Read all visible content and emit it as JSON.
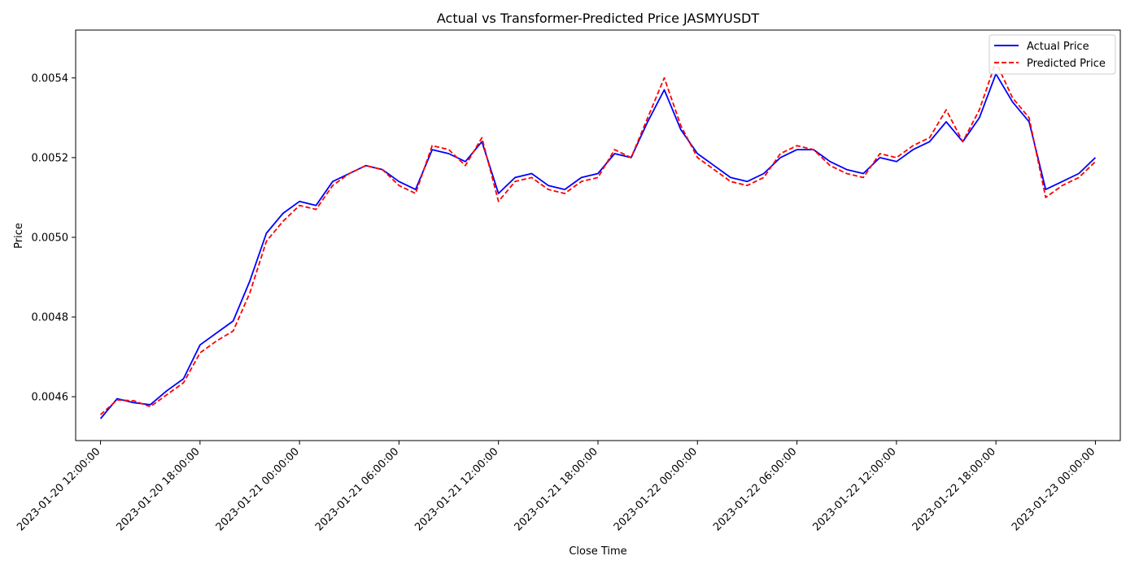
{
  "chart_data": {
    "type": "line",
    "title": "Actual vs Transformer-Predicted Price JASMYUSDT",
    "xlabel": "Close Time",
    "ylabel": "Price",
    "grid": false,
    "legend_position": "top-right",
    "x_range": [
      "2023-01-20 10:30:00",
      "2023-01-23 01:30:00"
    ],
    "ylim": [
      0.00449,
      0.00552
    ],
    "x_ticks": [
      "2023-01-20 12:00:00",
      "2023-01-20 18:00:00",
      "2023-01-21 00:00:00",
      "2023-01-21 06:00:00",
      "2023-01-21 12:00:00",
      "2023-01-21 18:00:00",
      "2023-01-22 00:00:00",
      "2023-01-22 06:00:00",
      "2023-01-22 12:00:00",
      "2023-01-22 18:00:00",
      "2023-01-23 00:00:00"
    ],
    "y_ticks": [
      "0.0046",
      "0.0048",
      "0.0050",
      "0.0052",
      "0.0054"
    ],
    "x": [
      "2023-01-20 12:00:00",
      "2023-01-20 13:00:00",
      "2023-01-20 14:00:00",
      "2023-01-20 15:00:00",
      "2023-01-20 16:00:00",
      "2023-01-20 17:00:00",
      "2023-01-20 18:00:00",
      "2023-01-20 19:00:00",
      "2023-01-20 20:00:00",
      "2023-01-20 21:00:00",
      "2023-01-20 22:00:00",
      "2023-01-20 23:00:00",
      "2023-01-21 00:00:00",
      "2023-01-21 01:00:00",
      "2023-01-21 02:00:00",
      "2023-01-21 03:00:00",
      "2023-01-21 04:00:00",
      "2023-01-21 05:00:00",
      "2023-01-21 06:00:00",
      "2023-01-21 07:00:00",
      "2023-01-21 08:00:00",
      "2023-01-21 09:00:00",
      "2023-01-21 10:00:00",
      "2023-01-21 11:00:00",
      "2023-01-21 12:00:00",
      "2023-01-21 13:00:00",
      "2023-01-21 14:00:00",
      "2023-01-21 15:00:00",
      "2023-01-21 16:00:00",
      "2023-01-21 17:00:00",
      "2023-01-21 18:00:00",
      "2023-01-21 19:00:00",
      "2023-01-21 20:00:00",
      "2023-01-21 21:00:00",
      "2023-01-21 22:00:00",
      "2023-01-21 23:00:00",
      "2023-01-22 00:00:00",
      "2023-01-22 01:00:00",
      "2023-01-22 02:00:00",
      "2023-01-22 03:00:00",
      "2023-01-22 04:00:00",
      "2023-01-22 05:00:00",
      "2023-01-22 06:00:00",
      "2023-01-22 07:00:00",
      "2023-01-22 08:00:00",
      "2023-01-22 09:00:00",
      "2023-01-22 10:00:00",
      "2023-01-22 11:00:00",
      "2023-01-22 12:00:00",
      "2023-01-22 13:00:00",
      "2023-01-22 14:00:00",
      "2023-01-22 15:00:00",
      "2023-01-22 16:00:00",
      "2023-01-22 17:00:00",
      "2023-01-22 18:00:00",
      "2023-01-22 19:00:00",
      "2023-01-22 20:00:00",
      "2023-01-22 21:00:00",
      "2023-01-22 22:00:00",
      "2023-01-22 23:00:00",
      "2023-01-23 00:00:00"
    ],
    "series": [
      {
        "name": "Actual Price",
        "color": "#0000ff",
        "style": "solid",
        "values": [
          0.004545,
          0.004595,
          0.004585,
          0.00458,
          0.004615,
          0.004645,
          0.00473,
          0.00476,
          0.00479,
          0.00489,
          0.00501,
          0.00506,
          0.00509,
          0.00508,
          0.00514,
          0.00516,
          0.00518,
          0.00517,
          0.00514,
          0.00512,
          0.00522,
          0.00521,
          0.00519,
          0.00524,
          0.00511,
          0.00515,
          0.00516,
          0.00513,
          0.00512,
          0.00515,
          0.00516,
          0.00521,
          0.0052,
          0.00529,
          0.00537,
          0.00527,
          0.00521,
          0.00518,
          0.00515,
          0.00514,
          0.00516,
          0.0052,
          0.00522,
          0.00522,
          0.00519,
          0.00517,
          0.00516,
          0.0052,
          0.00519,
          0.00522,
          0.00524,
          0.00529,
          0.00524,
          0.0053,
          0.00541,
          0.00534,
          0.00529,
          0.00512,
          0.00514,
          0.00516,
          0.0052
        ]
      },
      {
        "name": "Predicted Price",
        "color": "#ff0000",
        "style": "dashed",
        "values": [
          0.004555,
          0.004592,
          0.00459,
          0.004575,
          0.004605,
          0.004635,
          0.00471,
          0.00474,
          0.004765,
          0.00486,
          0.00499,
          0.00504,
          0.00508,
          0.00507,
          0.00513,
          0.00516,
          0.00518,
          0.00517,
          0.00513,
          0.00511,
          0.00523,
          0.00522,
          0.00518,
          0.00525,
          0.00509,
          0.00514,
          0.00515,
          0.00512,
          0.00511,
          0.00514,
          0.00515,
          0.00522,
          0.0052,
          0.0053,
          0.0054,
          0.00528,
          0.0052,
          0.00517,
          0.00514,
          0.00513,
          0.00515,
          0.00521,
          0.00523,
          0.00522,
          0.00518,
          0.00516,
          0.00515,
          0.00521,
          0.0052,
          0.00523,
          0.00525,
          0.00532,
          0.00524,
          0.00532,
          0.00544,
          0.00535,
          0.0053,
          0.0051,
          0.00513,
          0.00515,
          0.00519
        ]
      }
    ]
  }
}
